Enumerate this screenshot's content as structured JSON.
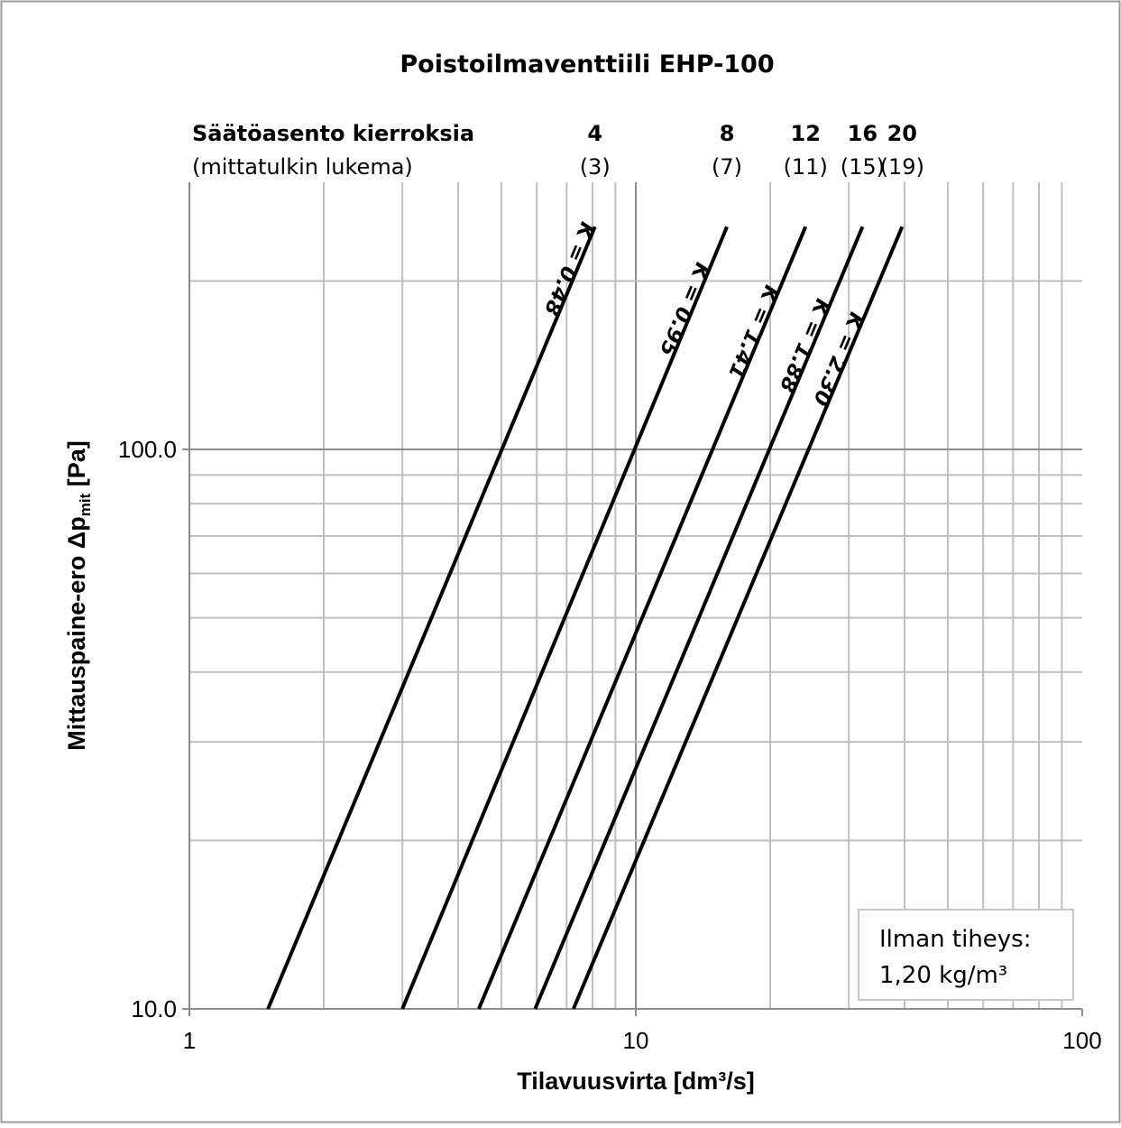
{
  "chart_data": {
    "type": "line",
    "title": "Poistoilmaventtiili EHP-100",
    "xlabel": "Tilavuusvirta [dm³/s]",
    "ylabel": {
      "prefix": "Mittauspaine-ero Δp",
      "subscript": "mit",
      "suffix": " [Pa]"
    },
    "x_scale": "log",
    "y_scale": "log",
    "xlim": [
      1,
      100
    ],
    "ylim": [
      10,
      250
    ],
    "x_ticks": [
      {
        "value": 1,
        "label": "1"
      },
      {
        "value": 10,
        "label": "10"
      },
      {
        "value": 100,
        "label": "100"
      }
    ],
    "y_ticks": [
      {
        "value": 10,
        "label": "10.0"
      },
      {
        "value": 100,
        "label": "100.0"
      }
    ],
    "grid": true,
    "settings_header": {
      "title": "Säätöasento kierroksia",
      "subtitle": "(mittatulkin lukema)"
    },
    "series": [
      {
        "name": "K = 0.48",
        "setting": "4",
        "reading": "(3)",
        "x": [
          1.5,
          8.1
        ],
        "y": [
          10,
          250
        ]
      },
      {
        "name": "K = 0.95",
        "setting": "8",
        "reading": "(7)",
        "x": [
          3.0,
          16.0
        ],
        "y": [
          10,
          250
        ]
      },
      {
        "name": "K = 1.41",
        "setting": "12",
        "reading": "(11)",
        "x": [
          4.45,
          24.0
        ],
        "y": [
          10,
          250
        ]
      },
      {
        "name": "K = 1.88",
        "setting": "16",
        "reading": "(15)",
        "x": [
          5.95,
          32.2
        ],
        "y": [
          10,
          250
        ]
      },
      {
        "name": "K = 2.30",
        "setting": "20",
        "reading": "(19)",
        "x": [
          7.25,
          39.5
        ],
        "y": [
          10,
          250
        ]
      }
    ],
    "annotation": {
      "line1": "Ilman tiheys:",
      "line2": "1,20 kg/m³"
    },
    "colors": {
      "line": "#000000",
      "grid": "#bfbfbf",
      "major_grid": "#8c8c8c"
    }
  }
}
